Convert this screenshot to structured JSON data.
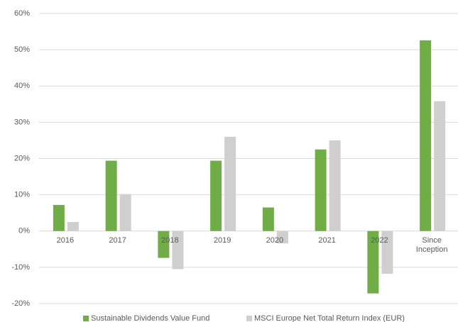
{
  "chart_data": {
    "type": "bar",
    "categories": [
      "2016",
      "2017",
      "2018",
      "2019",
      "2020",
      "2021",
      "2022",
      "Since Inception"
    ],
    "series": [
      {
        "name": "Sustainable Dividends Value Fund",
        "color": "#70ad47",
        "values": [
          7.2,
          19.4,
          -7.4,
          19.4,
          6.5,
          22.5,
          -17.2,
          52.6
        ]
      },
      {
        "name": "MSCI Europe Net Total Return Index (EUR)",
        "color": "#d0cece",
        "values": [
          2.5,
          10.2,
          -10.5,
          26.0,
          -3.4,
          25.0,
          -11.8,
          35.8
        ]
      }
    ],
    "ylim": [
      -20,
      60
    ],
    "yticks": [
      {
        "value": -20,
        "label": "-20%"
      },
      {
        "value": -10,
        "label": "-10%"
      },
      {
        "value": 0,
        "label": "0%"
      },
      {
        "value": 10,
        "label": "10%"
      },
      {
        "value": 20,
        "label": "20%"
      },
      {
        "value": 30,
        "label": "30%"
      },
      {
        "value": 40,
        "label": "40%"
      },
      {
        "value": 50,
        "label": "50%"
      },
      {
        "value": 60,
        "label": "60%"
      }
    ],
    "grid": true,
    "legend": "bottom"
  }
}
